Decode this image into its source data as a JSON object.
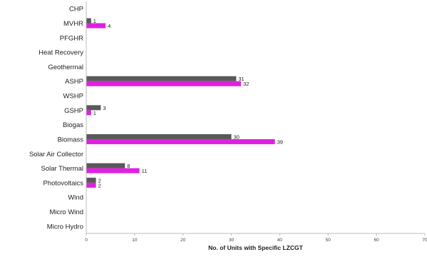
{
  "chart_data": {
    "type": "bar",
    "orientation": "horizontal",
    "xlabel": "No. of Units with Specific LZCGT",
    "xlim": [
      0,
      70
    ],
    "xticks": [
      0,
      10,
      20,
      30,
      40,
      50,
      60,
      70
    ],
    "grid": false,
    "categories": [
      "CHP",
      "MVHR",
      "PFGHR",
      "Heat Recovery",
      "Geothermal",
      "ASHP",
      "WSHP",
      "GSHP",
      "Biogas",
      "Biomass",
      "Solar Air Collector",
      "Solar Thermal",
      "Photovoltaics",
      "Wind",
      "Micro Wind",
      "Micro Hydro"
    ],
    "series": [
      {
        "color": "#595959",
        "values": [
          null,
          1,
          null,
          null,
          null,
          31,
          null,
          3,
          null,
          30,
          null,
          8,
          2,
          null,
          null,
          null
        ]
      },
      {
        "color": "#e020e0",
        "values": [
          null,
          4,
          null,
          null,
          null,
          32,
          null,
          1,
          null,
          39,
          null,
          11,
          2,
          null,
          null,
          null
        ]
      }
    ]
  }
}
